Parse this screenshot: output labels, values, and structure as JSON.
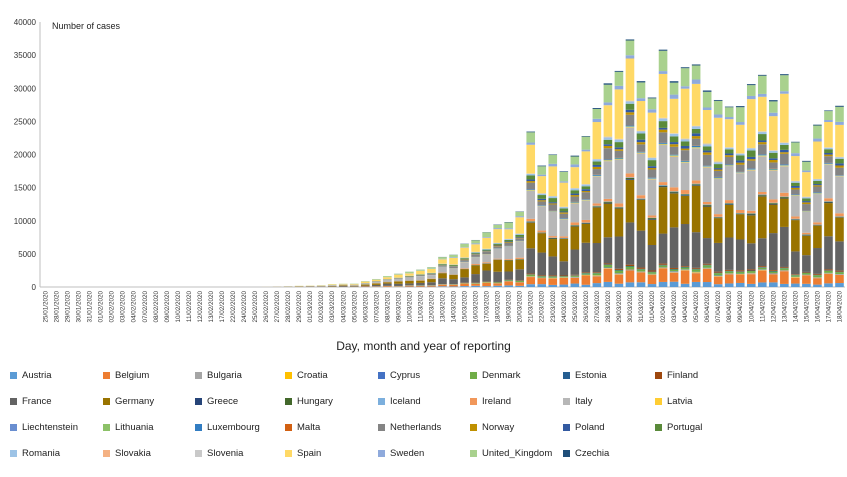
{
  "chart_data": {
    "type": "bar",
    "stacked": true,
    "title": "",
    "ylabel": "Number of cases",
    "xlabel": "Day, month and year of reporting",
    "ylim": [
      0,
      40000
    ],
    "yticks": [
      0,
      5000,
      10000,
      15000,
      20000,
      25000,
      30000,
      35000,
      40000
    ],
    "grid": false,
    "legend_position": "bottom",
    "categories": [
      "25/01/2020",
      "28/01/2020",
      "29/01/2020",
      "30/01/2020",
      "31/01/2020",
      "01/02/2020",
      "02/02/2020",
      "03/02/2020",
      "04/02/2020",
      "07/02/2020",
      "08/02/2020",
      "09/02/2020",
      "10/02/2020",
      "11/02/2020",
      "12/02/2020",
      "13/02/2020",
      "17/02/2020",
      "22/02/2020",
      "24/02/2020",
      "25/02/2020",
      "26/02/2020",
      "27/02/2020",
      "28/02/2020",
      "29/02/2020",
      "01/03/2020",
      "02/03/2020",
      "03/03/2020",
      "04/03/2020",
      "05/03/2020",
      "06/03/2020",
      "07/03/2020",
      "08/03/2020",
      "09/03/2020",
      "10/03/2020",
      "11/03/2020",
      "12/03/2020",
      "13/03/2020",
      "14/03/2020",
      "15/03/2020",
      "16/03/2020",
      "17/03/2020",
      "18/03/2020",
      "19/03/2020",
      "20/03/2020",
      "21/03/2020",
      "22/03/2020",
      "23/03/2020",
      "24/03/2020",
      "25/03/2020",
      "26/03/2020",
      "27/03/2020",
      "28/03/2020",
      "29/03/2020",
      "30/03/2020",
      "31/03/2020",
      "01/04/2020",
      "02/04/2020",
      "03/04/2020",
      "04/04/2020",
      "05/04/2020",
      "06/04/2020",
      "07/04/2020",
      "08/04/2020",
      "09/04/2020",
      "10/04/2020",
      "11/04/2020",
      "12/04/2020",
      "13/04/2020",
      "14/04/2020",
      "15/04/2020",
      "16/04/2020",
      "17/04/2020",
      "18/04/2020"
    ],
    "totals": [
      1,
      1,
      2,
      1,
      1,
      2,
      1,
      1,
      2,
      1,
      1,
      1,
      1,
      1,
      1,
      1,
      1,
      5,
      10,
      20,
      40,
      50,
      120,
      170,
      210,
      300,
      380,
      500,
      550,
      900,
      1300,
      1700,
      1900,
      2300,
      2800,
      2500,
      4500,
      5200,
      6500,
      7800,
      8300,
      9200,
      10100,
      11800,
      19800,
      18100,
      20800,
      17200,
      22000,
      22300,
      27300,
      32600,
      32800,
      32400,
      30300,
      29200,
      35200,
      34100,
      32000,
      35100,
      32100,
      27800,
      24500,
      26200,
      30900,
      31500,
      30100,
      30900,
      23500,
      20800,
      23900,
      24900,
      25900,
      24200
    ],
    "series": [
      {
        "name": "Austria",
        "color": "#5b9bd5",
        "share": 0.02
      },
      {
        "name": "Belgium",
        "color": "#ed7d31",
        "share": 0.05
      },
      {
        "name": "Bulgaria",
        "color": "#a5a5a5",
        "share": 0.002
      },
      {
        "name": "Croatia",
        "color": "#ffc000",
        "share": 0.002
      },
      {
        "name": "Cyprus",
        "color": "#4472c4",
        "share": 0.002
      },
      {
        "name": "Denmark",
        "color": "#70ad47",
        "share": 0.01
      },
      {
        "name": "Estonia",
        "color": "#255e91",
        "share": 0.002
      },
      {
        "name": "Finland",
        "color": "#9e480e",
        "share": 0.005
      },
      {
        "name": "France",
        "color": "#636363",
        "share": 0.16
      },
      {
        "name": "Germany",
        "color": "#997300",
        "share": 0.16
      },
      {
        "name": "Greece",
        "color": "#264478",
        "share": 0.003
      },
      {
        "name": "Hungary",
        "color": "#43682b",
        "share": 0.004
      },
      {
        "name": "Iceland",
        "color": "#7cafdd",
        "share": 0.002
      },
      {
        "name": "Ireland",
        "color": "#f1975a",
        "share": 0.015
      },
      {
        "name": "Italy",
        "color": "#b7b7b7",
        "share": 0.17
      },
      {
        "name": "Latvia",
        "color": "#ffcd33",
        "share": 0.002
      },
      {
        "name": "Liechtenstein",
        "color": "#698ed0",
        "share": 0.001
      },
      {
        "name": "Lithuania",
        "color": "#8cc168",
        "share": 0.002
      },
      {
        "name": "Luxembourg",
        "color": "#327dc2",
        "share": 0.004
      },
      {
        "name": "Malta",
        "color": "#d26012",
        "share": 0.001
      },
      {
        "name": "Netherlands",
        "color": "#848484",
        "share": 0.04
      },
      {
        "name": "Norway",
        "color": "#bf9000",
        "share": 0.01
      },
      {
        "name": "Poland",
        "color": "#335aa1",
        "share": 0.01
      },
      {
        "name": "Portugal",
        "color": "#5a8a3a",
        "share": 0.025
      },
      {
        "name": "Romania",
        "color": "#9dc3e6",
        "share": 0.01
      },
      {
        "name": "Slovakia",
        "color": "#f4b183",
        "share": 0.001
      },
      {
        "name": "Slovenia",
        "color": "#c9c9c9",
        "share": 0.002
      },
      {
        "name": "Spain",
        "color": "#ffd966",
        "share": 0.19
      },
      {
        "name": "Sweden",
        "color": "#8faadc",
        "share": 0.015
      },
      {
        "name": "United_Kingdom",
        "color": "#a9d18e",
        "share": 0.07
      },
      {
        "name": "Czechia",
        "color": "#1f4e79",
        "share": 0.005
      }
    ]
  }
}
